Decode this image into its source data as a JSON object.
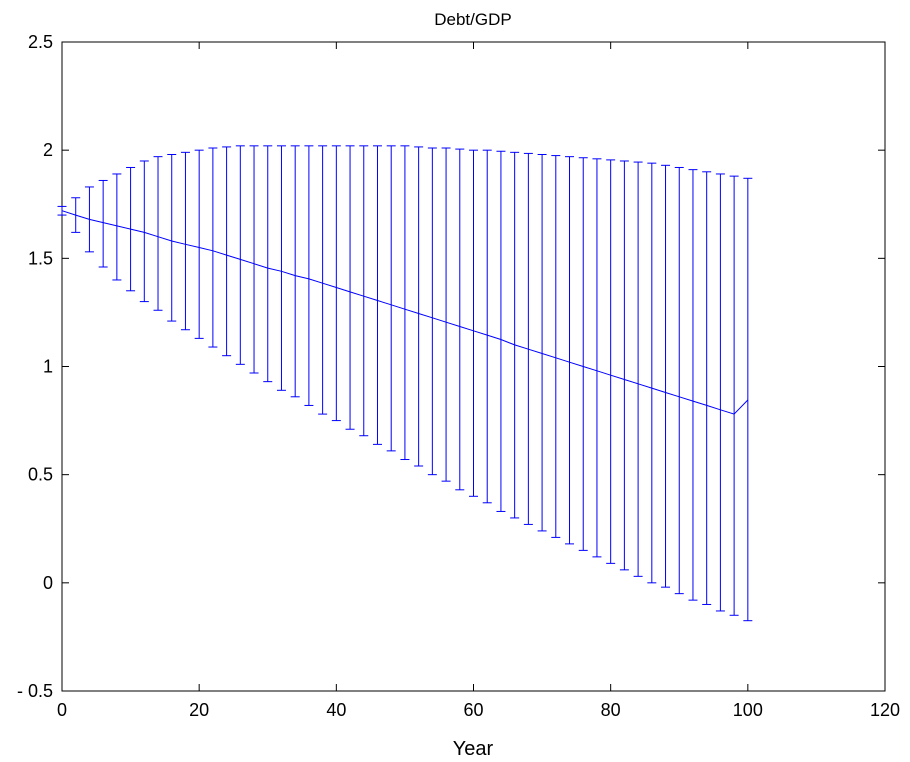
{
  "chart_data": {
    "type": "line",
    "title": "Debt/GDP",
    "xlabel": "Year",
    "ylabel": "",
    "xlim": [
      0,
      120
    ],
    "ylim": [
      -0.5,
      2.5
    ],
    "xticks": [
      0,
      20,
      40,
      60,
      80,
      100,
      120
    ],
    "yticks": [
      -0.5,
      0,
      0.5,
      1,
      1.5,
      2,
      2.5
    ],
    "xtick_labels": [
      "0",
      "20",
      "40",
      "60",
      "80",
      "100",
      "120"
    ],
    "ytick_labels": [
      "- 0.5",
      "0",
      "0.5",
      "1",
      "1.5",
      "2",
      "2.5"
    ],
    "grid": false,
    "legend": "none",
    "series_color": "#0000ff",
    "series": [
      {
        "style": "errorbar",
        "x": [
          0,
          2,
          4,
          6,
          8,
          10,
          12,
          14,
          16,
          18,
          20,
          22,
          24,
          26,
          28,
          30,
          32,
          34,
          36,
          38,
          40,
          42,
          44,
          46,
          48,
          50,
          52,
          54,
          56,
          58,
          60,
          62,
          64,
          66,
          68,
          70,
          72,
          74,
          76,
          78,
          80,
          82,
          84,
          86,
          88,
          90,
          92,
          94,
          96,
          98,
          100
        ],
        "mean": [
          1.72,
          1.7,
          1.68,
          1.665,
          1.65,
          1.635,
          1.62,
          1.6,
          1.58,
          1.565,
          1.55,
          1.535,
          1.515,
          1.495,
          1.475,
          1.455,
          1.44,
          1.42,
          1.405,
          1.385,
          1.365,
          1.345,
          1.325,
          1.305,
          1.285,
          1.265,
          1.245,
          1.225,
          1.205,
          1.185,
          1.165,
          1.145,
          1.125,
          1.1,
          1.08,
          1.06,
          1.04,
          1.02,
          1.0,
          0.98,
          0.96,
          0.94,
          0.92,
          0.9,
          0.88,
          0.86,
          0.84,
          0.82,
          0.8,
          0.78,
          0.845
        ],
        "upper": [
          1.74,
          1.78,
          1.83,
          1.86,
          1.89,
          1.92,
          1.95,
          1.97,
          1.98,
          1.99,
          2.0,
          2.01,
          2.015,
          2.02,
          2.02,
          2.02,
          2.02,
          2.02,
          2.02,
          2.02,
          2.02,
          2.02,
          2.02,
          2.02,
          2.02,
          2.02,
          2.015,
          2.01,
          2.01,
          2.005,
          2.0,
          2.0,
          1.995,
          1.99,
          1.985,
          1.98,
          1.975,
          1.97,
          1.965,
          1.96,
          1.955,
          1.95,
          1.945,
          1.94,
          1.93,
          1.92,
          1.91,
          1.9,
          1.89,
          1.88,
          1.87
        ],
        "lower": [
          1.7,
          1.62,
          1.53,
          1.46,
          1.4,
          1.35,
          1.3,
          1.26,
          1.21,
          1.17,
          1.13,
          1.09,
          1.05,
          1.01,
          0.97,
          0.93,
          0.89,
          0.86,
          0.82,
          0.78,
          0.75,
          0.71,
          0.68,
          0.64,
          0.61,
          0.57,
          0.54,
          0.5,
          0.47,
          0.43,
          0.4,
          0.37,
          0.33,
          0.3,
          0.27,
          0.24,
          0.21,
          0.18,
          0.15,
          0.12,
          0.09,
          0.06,
          0.03,
          0.0,
          -0.02,
          -0.05,
          -0.08,
          -0.1,
          -0.13,
          -0.15,
          -0.175
        ]
      }
    ]
  }
}
